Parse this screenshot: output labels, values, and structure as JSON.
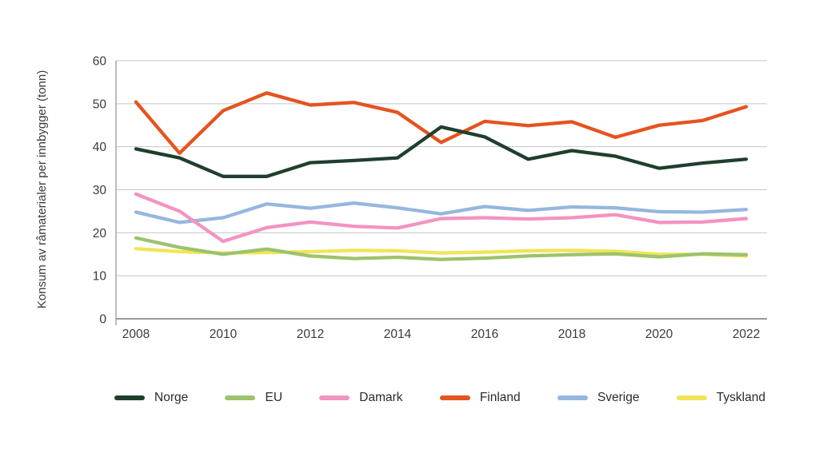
{
  "chart_data": {
    "type": "line",
    "title": "",
    "xlabel": "",
    "ylabel": "Konsum av råmaterialer per innbygger (tonn)",
    "x": [
      2008,
      2009,
      2010,
      2011,
      2012,
      2013,
      2014,
      2015,
      2016,
      2017,
      2018,
      2019,
      2020,
      2021,
      2022
    ],
    "xticks": [
      2008,
      2010,
      2012,
      2014,
      2016,
      2018,
      2020,
      2022
    ],
    "yticks": [
      0,
      10,
      20,
      30,
      40,
      50,
      60
    ],
    "ylim": [
      0,
      60
    ],
    "grid": "horizontal",
    "legend_position": "bottom",
    "background_color": "#ffffff",
    "gridline_color": "#c6c6c6",
    "axis_color": "#999999",
    "series": [
      {
        "name": "Norge",
        "color": "#1E3F2C",
        "values": [
          39.5,
          37.4,
          33.1,
          33.1,
          36.3,
          36.8,
          37.4,
          44.6,
          42.3,
          37.1,
          39.1,
          37.8,
          35.0,
          36.2,
          37.1
        ]
      },
      {
        "name": "EU",
        "color": "#9CC36D",
        "values": [
          18.8,
          16.6,
          15.0,
          16.2,
          14.6,
          14.0,
          14.3,
          13.8,
          14.1,
          14.6,
          14.9,
          15.1,
          14.4,
          15.1,
          14.9
        ]
      },
      {
        "name": "Damark",
        "color": "#F393C1",
        "values": [
          29.0,
          25.0,
          18.0,
          21.2,
          22.5,
          21.5,
          21.1,
          23.3,
          23.5,
          23.2,
          23.5,
          24.2,
          22.4,
          22.5,
          23.3
        ]
      },
      {
        "name": "Finland",
        "color": "#E5531F",
        "values": [
          50.4,
          38.5,
          48.4,
          52.5,
          49.7,
          50.3,
          48.0,
          41.0,
          45.9,
          44.9,
          45.8,
          42.2,
          45.0,
          46.1,
          49.3
        ]
      },
      {
        "name": "Sverige",
        "color": "#95B7DE",
        "values": [
          24.8,
          22.4,
          23.5,
          26.7,
          25.7,
          26.9,
          25.8,
          24.4,
          26.1,
          25.2,
          26.0,
          25.8,
          24.9,
          24.8,
          25.4
        ]
      },
      {
        "name": "Tyskland",
        "color": "#F1E457",
        "values": [
          16.3,
          15.6,
          15.3,
          15.4,
          15.6,
          15.9,
          15.8,
          15.3,
          15.5,
          15.8,
          15.9,
          15.7,
          15.0,
          15.0,
          14.6
        ]
      }
    ]
  }
}
